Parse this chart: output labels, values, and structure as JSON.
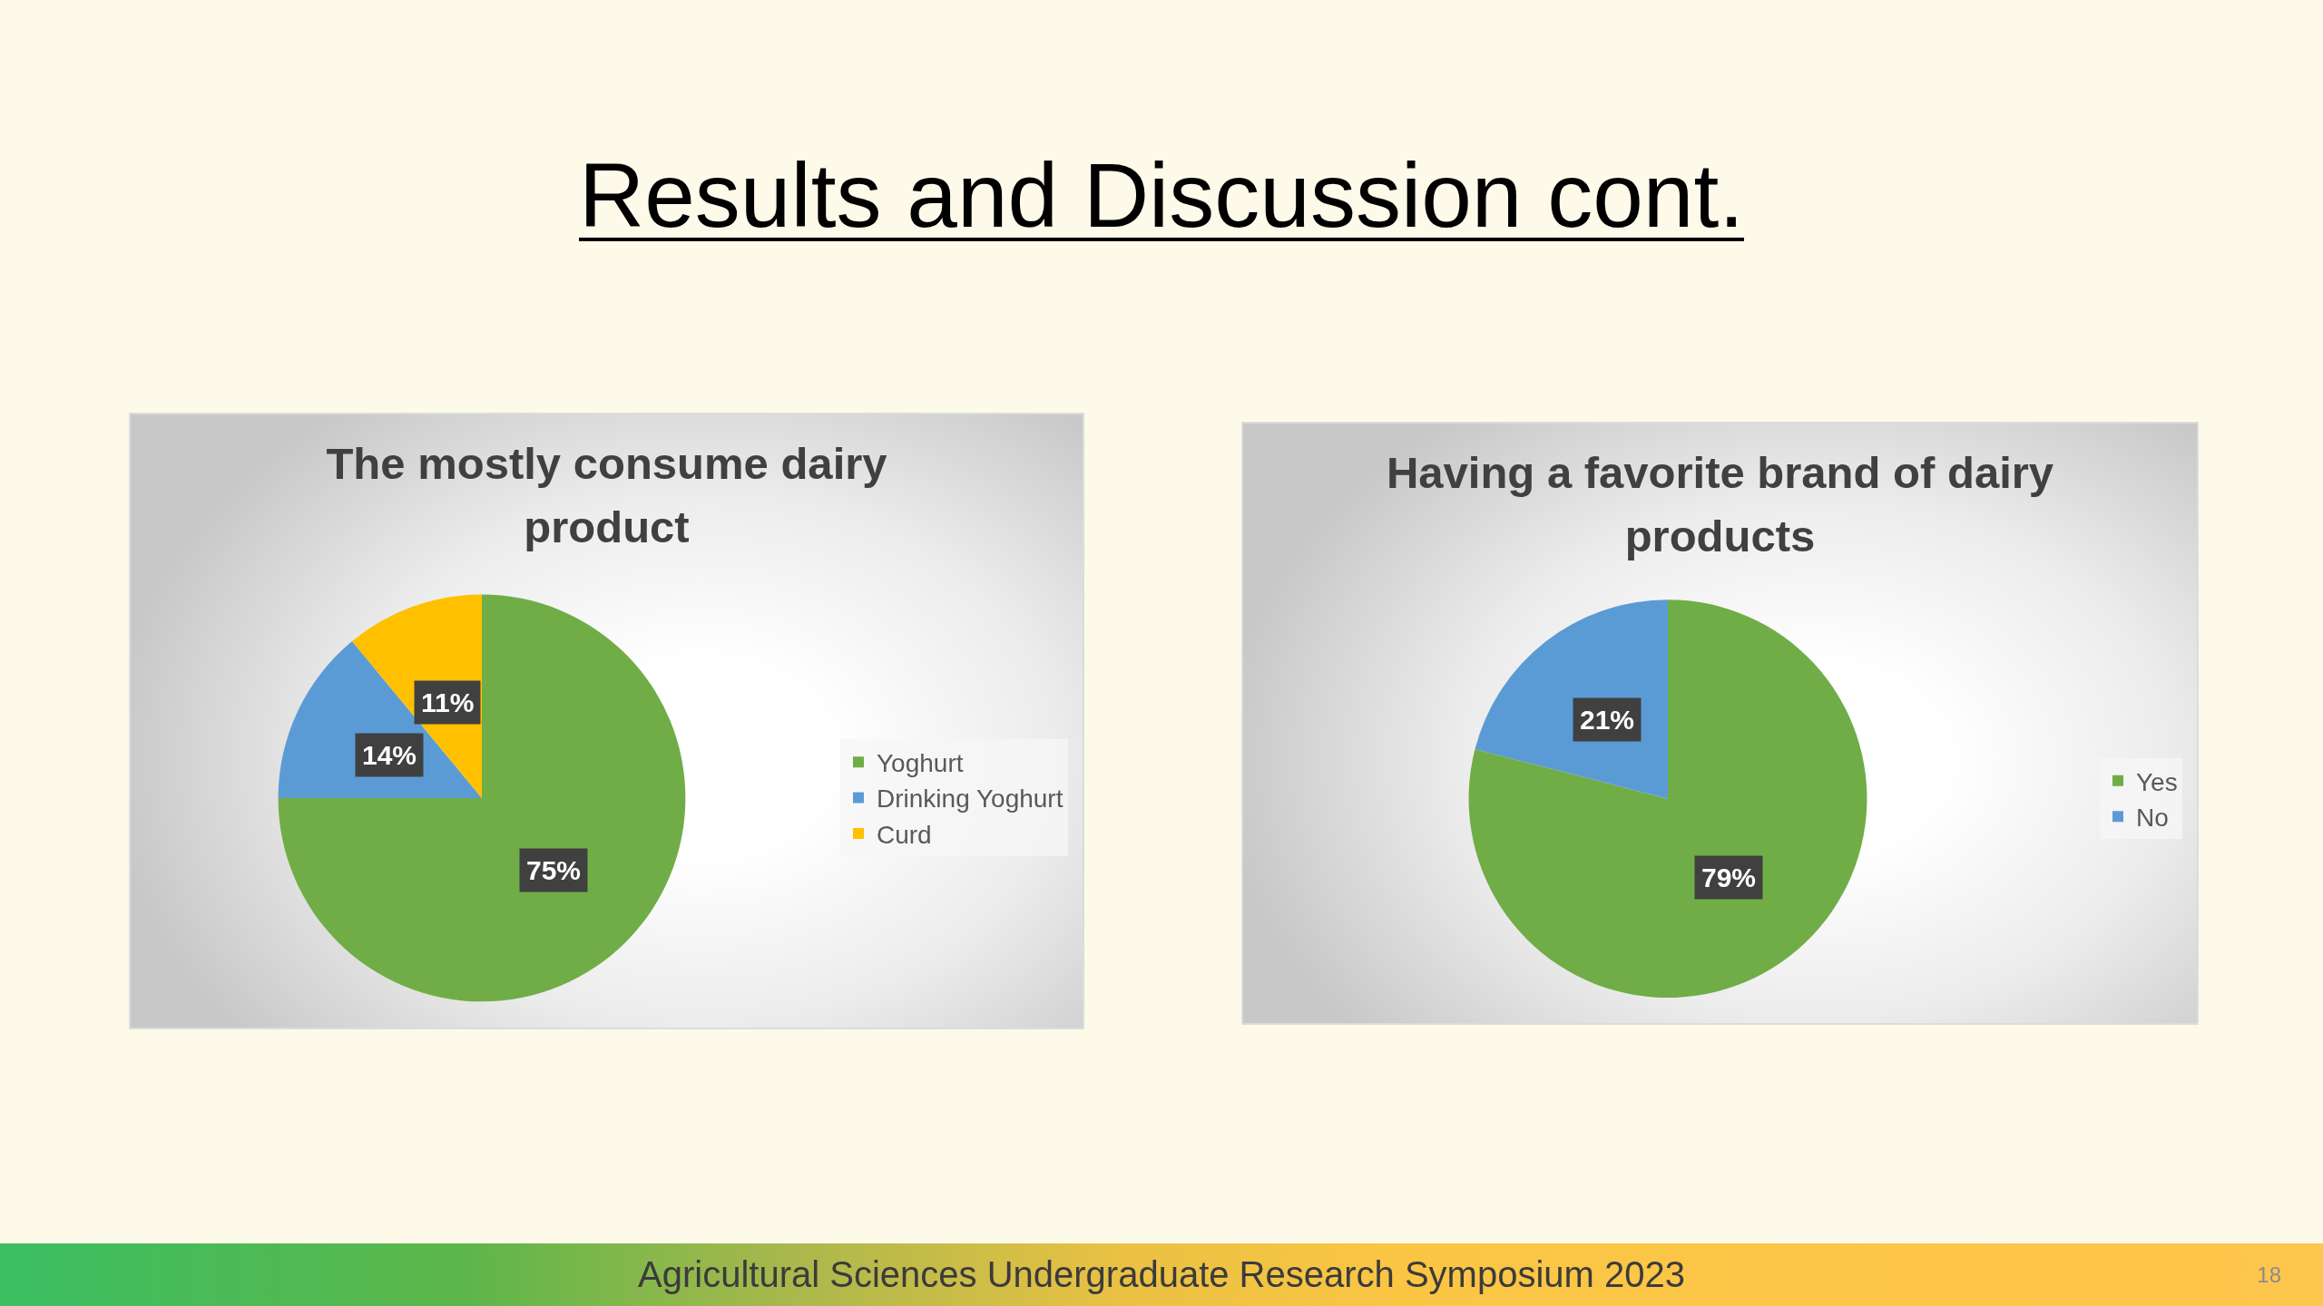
{
  "chart_data": [
    {
      "type": "other",
      "title": "Results and Discussion cont."
    },
    {
      "type": "pie",
      "title": "The mostly consume dairy product",
      "categories": [
        "Yoghurt",
        "Drinking Yoghurt",
        "Curd"
      ],
      "values": [
        75,
        14,
        11
      ],
      "colors": [
        "#70ad47",
        "#5b9bd5",
        "#ffc000"
      ],
      "value_labels": [
        "75%",
        "14%",
        "11%"
      ],
      "legend": "right"
    },
    {
      "type": "pie",
      "title": "Having a favorite brand of dairy products",
      "categories": [
        "Yes",
        "No"
      ],
      "values": [
        79,
        21
      ],
      "colors": [
        "#70ad47",
        "#5b9bd5"
      ],
      "value_labels": [
        "79%",
        "21%"
      ],
      "legend": "right"
    },
    {
      "type": "other",
      "annotations": [
        "Agricultural Sciences Undergraduate Research Symposium 2023",
        "18"
      ]
    }
  ]
}
